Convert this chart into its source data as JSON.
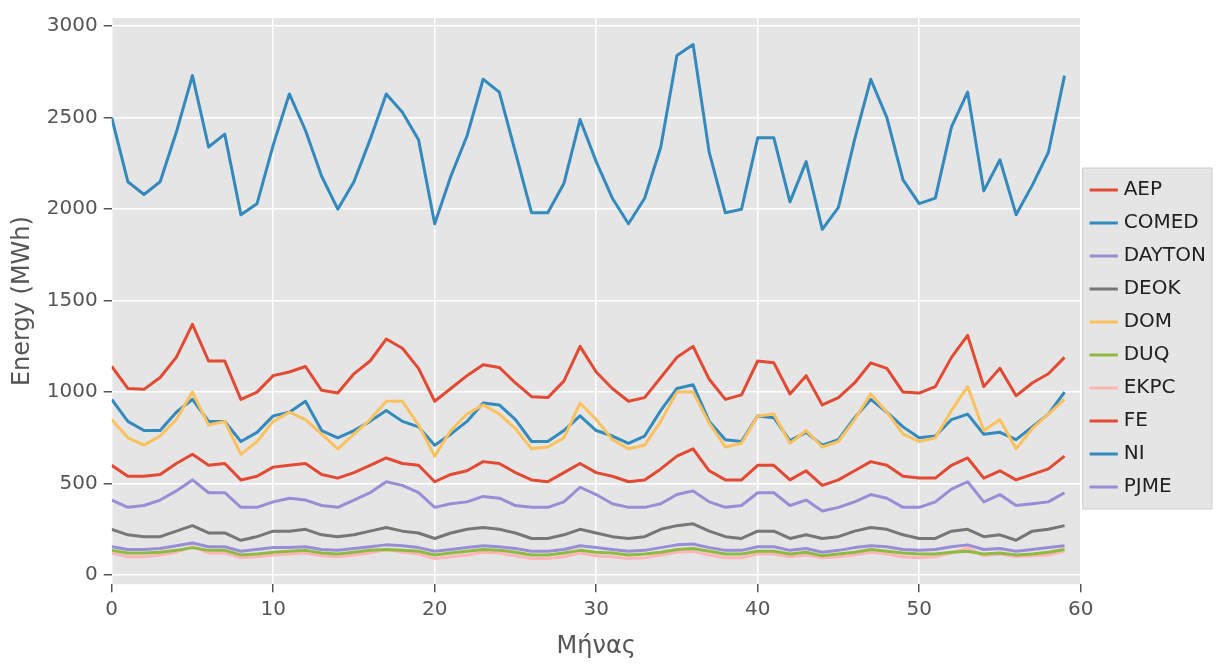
{
  "chart_data": {
    "type": "line",
    "xlabel": "Μήνας",
    "ylabel": "Energy (MWh)",
    "x": [
      0,
      1,
      2,
      3,
      4,
      5,
      6,
      7,
      8,
      9,
      10,
      11,
      12,
      13,
      14,
      15,
      16,
      17,
      18,
      19,
      20,
      21,
      22,
      23,
      24,
      25,
      26,
      27,
      28,
      29,
      30,
      31,
      32,
      33,
      34,
      35,
      36,
      37,
      38,
      39,
      40,
      41,
      42,
      43,
      44,
      45,
      46,
      47,
      48,
      49,
      50,
      51,
      52,
      53,
      54,
      55,
      56,
      57,
      58,
      59
    ],
    "xlim": [
      0,
      60
    ],
    "xticks": [
      0,
      10,
      20,
      30,
      40,
      50,
      60
    ],
    "ylim": [
      -50,
      3045
    ],
    "yticks": [
      0,
      500,
      1000,
      1500,
      2000,
      2500,
      3000
    ],
    "grid": true,
    "legend": "right",
    "marker": "none",
    "line_style": "solid",
    "series": [
      {
        "name": "AEP",
        "color": "#e24a33",
        "values": [
          1140,
          1020,
          1015,
          1080,
          1190,
          1370,
          1170,
          1170,
          960,
          1000,
          1090,
          1110,
          1140,
          1010,
          995,
          1100,
          1170,
          1290,
          1240,
          1130,
          950,
          1020,
          1090,
          1150,
          1135,
          1050,
          975,
          970,
          1060,
          1250,
          1110,
          1020,
          950,
          970,
          1080,
          1190,
          1250,
          1070,
          960,
          985,
          1170,
          1160,
          990,
          1090,
          930,
          970,
          1050,
          1160,
          1130,
          1000,
          995,
          1030,
          1190,
          1310,
          1030,
          1130,
          980,
          1050,
          1100,
          1190
        ]
      },
      {
        "name": "COMED",
        "color": "#348abd",
        "values": [
          2500,
          2150,
          2080,
          2150,
          2420,
          2730,
          2340,
          2410,
          1970,
          2030,
          2350,
          2630,
          2430,
          2180,
          2000,
          2150,
          2380,
          2630,
          2530,
          2380,
          1920,
          2180,
          2400,
          2710,
          2640,
          2310,
          1980,
          1980,
          2140,
          2490,
          2260,
          2060,
          1920,
          2060,
          2340,
          2840,
          2900,
          2310,
          1980,
          2000,
          2390,
          2390,
          2040,
          2260,
          1890,
          2010,
          2380,
          2710,
          2500,
          2160,
          2030,
          2060,
          2450,
          2640,
          2100,
          2270,
          1970,
          2130,
          2310,
          2730
        ]
      },
      {
        "name": "DAYTON",
        "color": "#988ed5",
        "values": [
          155,
          140,
          140,
          145,
          160,
          175,
          155,
          155,
          130,
          140,
          150,
          150,
          155,
          140,
          135,
          145,
          155,
          165,
          160,
          150,
          130,
          140,
          150,
          160,
          155,
          145,
          130,
          130,
          140,
          160,
          150,
          140,
          130,
          135,
          150,
          165,
          170,
          150,
          135,
          135,
          155,
          155,
          135,
          145,
          125,
          135,
          150,
          160,
          155,
          140,
          135,
          140,
          155,
          165,
          140,
          145,
          130,
          140,
          150,
          160
        ]
      },
      {
        "name": "DEOK",
        "color": "#777777",
        "values": [
          250,
          220,
          210,
          210,
          240,
          270,
          230,
          230,
          190,
          210,
          240,
          240,
          250,
          220,
          210,
          220,
          240,
          260,
          240,
          230,
          200,
          230,
          250,
          260,
          250,
          230,
          200,
          200,
          220,
          250,
          230,
          210,
          200,
          210,
          250,
          270,
          280,
          240,
          210,
          200,
          240,
          240,
          200,
          220,
          200,
          210,
          240,
          260,
          250,
          220,
          200,
          200,
          240,
          250,
          210,
          220,
          190,
          240,
          250,
          270
        ]
      },
      {
        "name": "DOM",
        "color": "#fbc15e",
        "values": [
          850,
          750,
          710,
          760,
          850,
          1000,
          820,
          840,
          660,
          730,
          840,
          890,
          850,
          770,
          690,
          770,
          850,
          950,
          950,
          820,
          650,
          790,
          880,
          930,
          880,
          800,
          690,
          700,
          750,
          940,
          850,
          740,
          690,
          710,
          840,
          1000,
          1000,
          830,
          700,
          720,
          870,
          880,
          720,
          790,
          700,
          730,
          850,
          990,
          890,
          770,
          730,
          750,
          900,
          1030,
          790,
          850,
          690,
          800,
          880,
          960
        ]
      },
      {
        "name": "DUQ",
        "color": "#8eba42",
        "values": [
          135,
          120,
          120,
          125,
          135,
          150,
          135,
          135,
          110,
          115,
          125,
          130,
          135,
          120,
          115,
          125,
          135,
          140,
          135,
          130,
          110,
          120,
          130,
          140,
          135,
          125,
          110,
          110,
          120,
          135,
          125,
          120,
          110,
          115,
          125,
          140,
          145,
          130,
          115,
          115,
          130,
          130,
          115,
          125,
          105,
          115,
          125,
          140,
          130,
          120,
          115,
          115,
          125,
          130,
          115,
          120,
          110,
          115,
          125,
          140
        ]
      },
      {
        "name": "EKPC",
        "color": "#ffb5b8",
        "values": [
          120,
          100,
          100,
          110,
          125,
          155,
          120,
          120,
          95,
          100,
          110,
          115,
          120,
          105,
          100,
          110,
          120,
          140,
          125,
          115,
          90,
          100,
          110,
          125,
          120,
          105,
          90,
          90,
          100,
          120,
          105,
          100,
          90,
          95,
          110,
          125,
          130,
          110,
          95,
          95,
          115,
          115,
          100,
          110,
          95,
          100,
          110,
          125,
          115,
          100,
          95,
          100,
          120,
          150,
          105,
          115,
          100,
          105,
          110,
          130
        ]
      },
      {
        "name": "FE",
        "color": "#e24a33",
        "values": [
          600,
          540,
          540,
          550,
          610,
          660,
          600,
          610,
          520,
          540,
          590,
          600,
          610,
          550,
          530,
          560,
          600,
          640,
          610,
          600,
          510,
          550,
          570,
          620,
          610,
          560,
          520,
          510,
          560,
          610,
          560,
          540,
          510,
          520,
          580,
          650,
          690,
          570,
          520,
          520,
          600,
          600,
          520,
          570,
          490,
          520,
          570,
          620,
          600,
          540,
          530,
          530,
          600,
          640,
          530,
          570,
          520,
          550,
          580,
          650
        ]
      },
      {
        "name": "NI",
        "color": "#348abd",
        "values": [
          960,
          840,
          790,
          790,
          890,
          960,
          840,
          840,
          730,
          780,
          870,
          890,
          950,
          790,
          750,
          790,
          840,
          900,
          840,
          810,
          710,
          770,
          840,
          940,
          930,
          850,
          730,
          730,
          790,
          870,
          790,
          760,
          720,
          760,
          900,
          1020,
          1040,
          840,
          740,
          730,
          870,
          860,
          735,
          780,
          710,
          740,
          860,
          960,
          890,
          810,
          750,
          760,
          850,
          880,
          770,
          780,
          740,
          810,
          880,
          1000
        ]
      },
      {
        "name": "PJME",
        "color": "#988ed5",
        "values": [
          410,
          370,
          380,
          410,
          460,
          520,
          450,
          450,
          370,
          370,
          400,
          420,
          410,
          380,
          370,
          410,
          450,
          510,
          490,
          450,
          370,
          390,
          400,
          430,
          420,
          380,
          370,
          370,
          400,
          480,
          440,
          390,
          370,
          370,
          390,
          440,
          460,
          400,
          370,
          380,
          450,
          450,
          380,
          410,
          350,
          370,
          400,
          440,
          420,
          370,
          370,
          400,
          470,
          510,
          400,
          440,
          380,
          390,
          400,
          450
        ]
      }
    ]
  }
}
